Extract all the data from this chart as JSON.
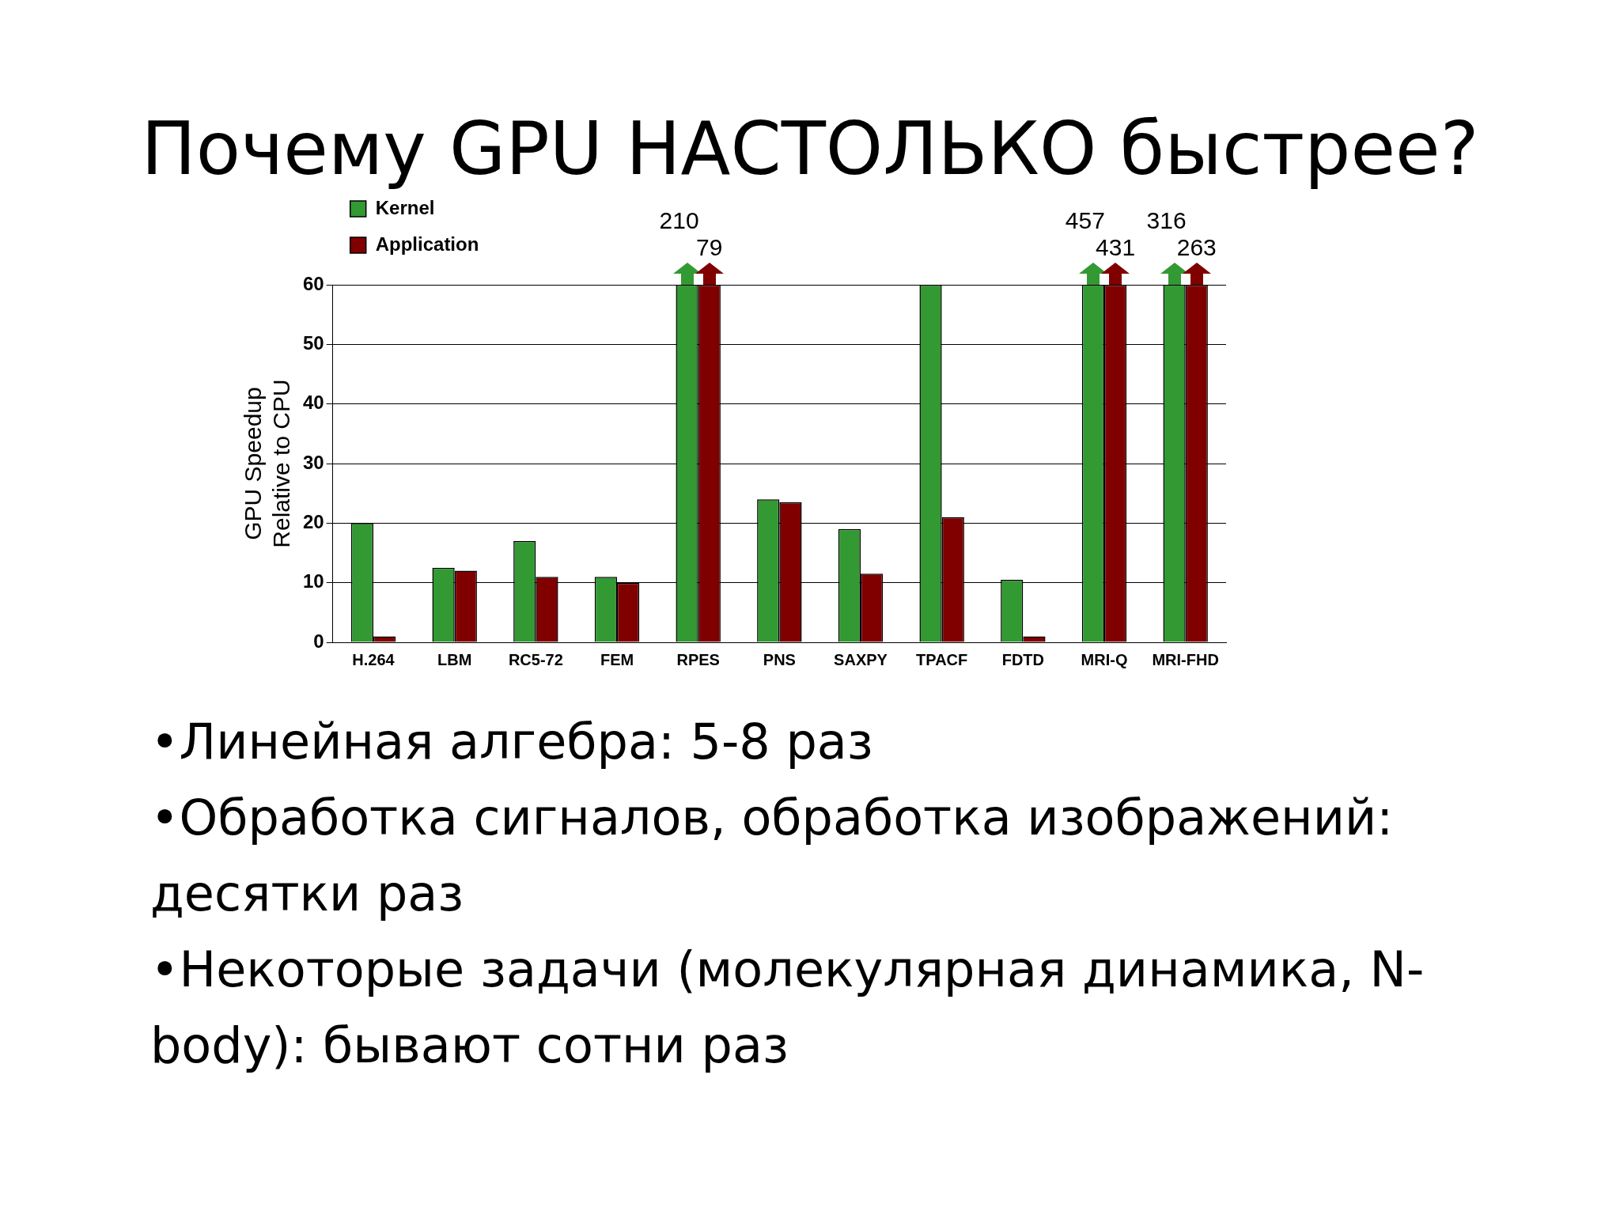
{
  "chart_data": {
    "type": "bar",
    "title": "Почему GPU НАСТОЛЬКО быстрее?",
    "ylabel": "GPU Speedup\nRelative to CPU",
    "categories": [
      "H.264",
      "LBM",
      "RC5-72",
      "FEM",
      "RPES",
      "PNS",
      "SAXPY",
      "TPACF",
      "FDTD",
      "MRI-Q",
      "MRI-FHD"
    ],
    "series": [
      {
        "name": "Kernel",
        "color": "#339933",
        "values": [
          20,
          12.5,
          17,
          11,
          60,
          24,
          19,
          60,
          10.5,
          60,
          60
        ]
      },
      {
        "name": "Application",
        "color": "#800000",
        "values": [
          1,
          12,
          11,
          10,
          60,
          23.5,
          11.5,
          21,
          1,
          60,
          60
        ]
      }
    ],
    "ylim": [
      0,
      60
    ],
    "yticks": [
      0,
      10,
      20,
      30,
      40,
      50,
      60
    ],
    "grid": "y",
    "legend": "top left",
    "annotations": [
      {
        "text": "210",
        "x": "RPES",
        "y": 60
      },
      {
        "text": "79",
        "x": "RPES",
        "y": 60
      },
      {
        "text": "457",
        "x": "MRI-Q",
        "y": 60
      },
      {
        "text": "431",
        "x": "MRI-Q",
        "y": 60
      },
      {
        "text": "316",
        "x": "MRI-FHD",
        "y": 60
      },
      {
        "text": "263",
        "x": "MRI-FHD",
        "y": 60
      },
      "•Линейная алгебра: 5-8 раз",
      "•Обработка сигналов, обработка изображений: десятки раз",
      "•Некоторые задачи (молекулярная динамика, N-body): бывают сотни раз"
    ]
  }
}
